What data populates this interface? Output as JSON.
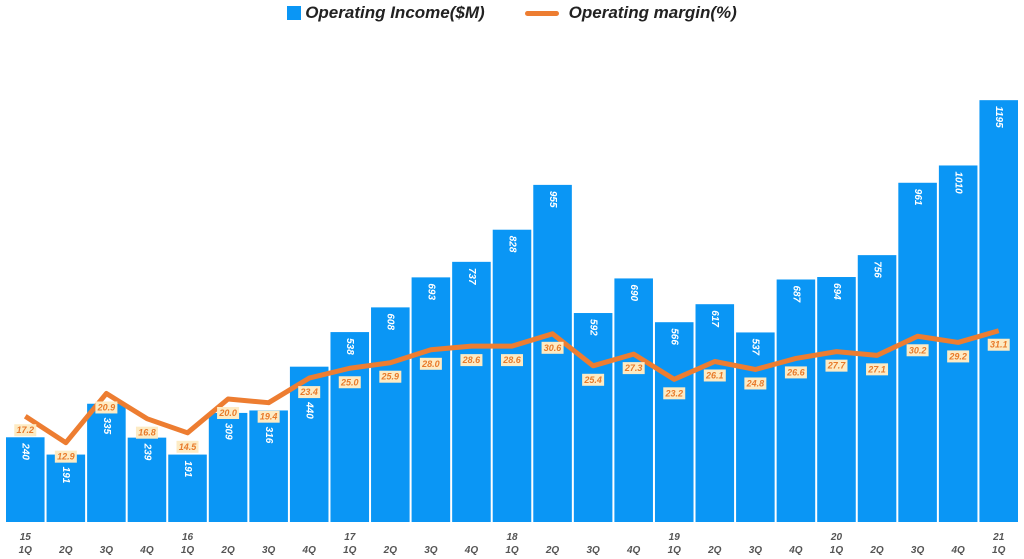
{
  "chart_data": {
    "type": "bar+line",
    "categories": [
      "15 1Q",
      "2Q",
      "3Q",
      "4Q",
      "16 1Q",
      "2Q",
      "3Q",
      "4Q",
      "17 1Q",
      "2Q",
      "3Q",
      "4Q",
      "18 1Q",
      "2Q",
      "3Q",
      "4Q",
      "19 1Q",
      "2Q",
      "3Q",
      "4Q",
      "20 1Q",
      "2Q",
      "3Q",
      "4Q",
      "21 1Q"
    ],
    "x_quarters": [
      "1Q",
      "2Q",
      "3Q",
      "4Q",
      "1Q",
      "2Q",
      "3Q",
      "4Q",
      "1Q",
      "2Q",
      "3Q",
      "4Q",
      "1Q",
      "2Q",
      "3Q",
      "4Q",
      "1Q",
      "2Q",
      "3Q",
      "4Q",
      "1Q",
      "2Q",
      "3Q",
      "4Q",
      "1Q"
    ],
    "x_years": [
      "15",
      "",
      "",
      "",
      "16",
      "",
      "",
      "",
      "17",
      "",
      "",
      "",
      "18",
      "",
      "",
      "",
      "19",
      "",
      "",
      "",
      "20",
      "",
      "",
      "",
      "21"
    ],
    "series": [
      {
        "name": "Operating Income($M)",
        "type": "bar",
        "color": "#0a96f5",
        "values": [
          240,
          191,
          335,
          239,
          191,
          309,
          316,
          440,
          538,
          608,
          693,
          737,
          828,
          955,
          592,
          690,
          566,
          617,
          537,
          687,
          694,
          756,
          961,
          1010,
          1195
        ]
      },
      {
        "name": "Operating margin(%)",
        "type": "line",
        "color": "#ed7d31",
        "values": [
          17.2,
          12.9,
          20.9,
          16.8,
          14.5,
          20.0,
          19.4,
          23.4,
          25.0,
          25.9,
          28.0,
          28.6,
          28.6,
          30.6,
          25.4,
          27.3,
          23.2,
          26.1,
          24.8,
          26.6,
          27.7,
          27.1,
          30.2,
          29.2,
          31.1
        ]
      }
    ],
    "legend": "top-center",
    "grid": false
  }
}
